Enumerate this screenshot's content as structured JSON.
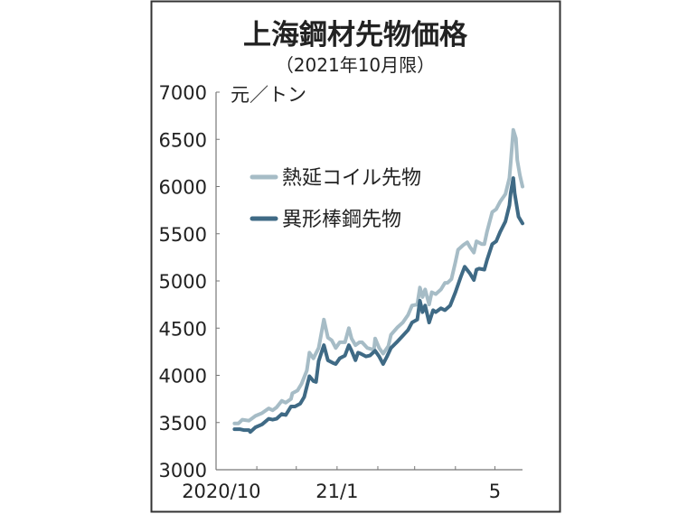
{
  "chart_data": {
    "type": "line",
    "title": "上海鋼材先物価格",
    "subtitle": "（2021年10月限）",
    "ylabel": "元／トン",
    "xlabel": "",
    "ylim": [
      3000,
      7000
    ],
    "yticks": [
      3000,
      3500,
      4000,
      4500,
      5000,
      5500,
      6000,
      6500,
      7000
    ],
    "xlim": [
      "2020-10-01",
      "2021-05-22"
    ],
    "xtick_marks": [
      "2020-11-01",
      "2020-12-01",
      "2021-01-01",
      "2021-02-01",
      "2021-03-01",
      "2021-04-01",
      "2021-05-01"
    ],
    "xtick_labels": [
      {
        "date": "2020-10-05",
        "label": "2020/10"
      },
      {
        "date": "2021-01-01",
        "label": "21/1"
      },
      {
        "date": "2021-05-01",
        "label": "5"
      }
    ],
    "grid": false,
    "legend_placement": "upper-left",
    "series": [
      {
        "name": "熱延コイル先物",
        "color": "#a6bcc6",
        "points": [
          [
            "2020-10-15",
            3490
          ],
          [
            "2020-10-18",
            3490
          ],
          [
            "2020-10-21",
            3530
          ],
          [
            "2020-10-26",
            3520
          ],
          [
            "2020-10-31",
            3570
          ],
          [
            "2020-11-05",
            3600
          ],
          [
            "2020-11-10",
            3650
          ],
          [
            "2020-11-13",
            3630
          ],
          [
            "2020-11-16",
            3660
          ],
          [
            "2020-11-20",
            3730
          ],
          [
            "2020-11-23",
            3710
          ],
          [
            "2020-11-27",
            3750
          ],
          [
            "2020-11-28",
            3810
          ],
          [
            "2020-12-02",
            3840
          ],
          [
            "2020-12-05",
            3910
          ],
          [
            "2020-12-09",
            4050
          ],
          [
            "2020-12-11",
            4240
          ],
          [
            "2020-12-14",
            4180
          ],
          [
            "2020-12-18",
            4290
          ],
          [
            "2020-12-22",
            4590
          ],
          [
            "2020-12-25",
            4400
          ],
          [
            "2020-12-28",
            4370
          ],
          [
            "2020-12-31",
            4290
          ],
          [
            "2021-01-03",
            4350
          ],
          [
            "2021-01-07",
            4350
          ],
          [
            "2021-01-10",
            4500
          ],
          [
            "2021-01-12",
            4390
          ],
          [
            "2021-01-15",
            4320
          ],
          [
            "2021-01-18",
            4350
          ],
          [
            "2021-01-20",
            4350
          ],
          [
            "2021-01-24",
            4290
          ],
          [
            "2021-01-29",
            4270
          ],
          [
            "2021-01-30",
            4390
          ],
          [
            "2021-02-02",
            4290
          ],
          [
            "2021-02-05",
            4230
          ],
          [
            "2021-02-09",
            4310
          ],
          [
            "2021-02-11",
            4430
          ],
          [
            "2021-02-16",
            4510
          ],
          [
            "2021-02-20",
            4560
          ],
          [
            "2021-02-24",
            4640
          ],
          [
            "2021-02-27",
            4740
          ],
          [
            "2021-03-03",
            4750
          ],
          [
            "2021-03-05",
            4930
          ],
          [
            "2021-03-07",
            4830
          ],
          [
            "2021-03-09",
            4910
          ],
          [
            "2021-03-12",
            4750
          ],
          [
            "2021-03-14",
            4880
          ],
          [
            "2021-03-17",
            4860
          ],
          [
            "2021-03-21",
            4910
          ],
          [
            "2021-03-24",
            4980
          ],
          [
            "2021-03-26",
            4980
          ],
          [
            "2021-03-29",
            5020
          ],
          [
            "2021-04-01",
            5200
          ],
          [
            "2021-04-03",
            5330
          ],
          [
            "2021-04-07",
            5380
          ],
          [
            "2021-04-10",
            5410
          ],
          [
            "2021-04-12",
            5360
          ],
          [
            "2021-04-15",
            5300
          ],
          [
            "2021-04-17",
            5420
          ],
          [
            "2021-04-21",
            5390
          ],
          [
            "2021-04-23",
            5390
          ],
          [
            "2021-04-25",
            5520
          ],
          [
            "2021-04-29",
            5730
          ],
          [
            "2021-05-02",
            5760
          ],
          [
            "2021-05-05",
            5840
          ],
          [
            "2021-05-09",
            5920
          ],
          [
            "2021-05-12",
            6090
          ],
          [
            "2021-05-13",
            6250
          ],
          [
            "2021-05-15",
            6600
          ],
          [
            "2021-05-17",
            6510
          ],
          [
            "2021-05-18",
            6280
          ],
          [
            "2021-05-20",
            6120
          ],
          [
            "2021-05-22",
            6000
          ]
        ]
      },
      {
        "name": "異形棒鋼先物",
        "color": "#3f6a85",
        "points": [
          [
            "2020-10-15",
            3430
          ],
          [
            "2020-10-19",
            3430
          ],
          [
            "2020-10-22",
            3420
          ],
          [
            "2020-10-26",
            3420
          ],
          [
            "2020-10-27",
            3400
          ],
          [
            "2020-10-31",
            3450
          ],
          [
            "2020-11-05",
            3480
          ],
          [
            "2020-11-10",
            3540
          ],
          [
            "2020-11-13",
            3530
          ],
          [
            "2020-11-16",
            3540
          ],
          [
            "2020-11-20",
            3590
          ],
          [
            "2020-11-23",
            3580
          ],
          [
            "2020-11-27",
            3670
          ],
          [
            "2020-11-30",
            3670
          ],
          [
            "2020-12-04",
            3700
          ],
          [
            "2020-12-07",
            3770
          ],
          [
            "2020-12-11",
            3990
          ],
          [
            "2020-12-14",
            3940
          ],
          [
            "2020-12-16",
            3930
          ],
          [
            "2020-12-18",
            4150
          ],
          [
            "2020-12-22",
            4320
          ],
          [
            "2020-12-25",
            4160
          ],
          [
            "2020-12-29",
            4130
          ],
          [
            "2020-12-31",
            4120
          ],
          [
            "2021-01-03",
            4180
          ],
          [
            "2021-01-07",
            4210
          ],
          [
            "2021-01-10",
            4320
          ],
          [
            "2021-01-12",
            4260
          ],
          [
            "2021-01-15",
            4160
          ],
          [
            "2021-01-17",
            4240
          ],
          [
            "2021-01-19",
            4230
          ],
          [
            "2021-01-23",
            4200
          ],
          [
            "2021-01-26",
            4210
          ],
          [
            "2021-01-30",
            4260
          ],
          [
            "2021-02-02",
            4200
          ],
          [
            "2021-02-05",
            4120
          ],
          [
            "2021-02-08",
            4200
          ],
          [
            "2021-02-11",
            4290
          ],
          [
            "2021-02-16",
            4360
          ],
          [
            "2021-02-20",
            4420
          ],
          [
            "2021-02-24",
            4480
          ],
          [
            "2021-02-27",
            4560
          ],
          [
            "2021-03-03",
            4590
          ],
          [
            "2021-03-05",
            4790
          ],
          [
            "2021-03-07",
            4670
          ],
          [
            "2021-03-09",
            4740
          ],
          [
            "2021-03-12",
            4560
          ],
          [
            "2021-03-15",
            4690
          ],
          [
            "2021-03-17",
            4670
          ],
          [
            "2021-03-21",
            4710
          ],
          [
            "2021-03-24",
            4690
          ],
          [
            "2021-03-28",
            4740
          ],
          [
            "2021-04-01",
            4880
          ],
          [
            "2021-04-05",
            5040
          ],
          [
            "2021-04-08",
            5150
          ],
          [
            "2021-04-12",
            5080
          ],
          [
            "2021-04-15",
            5010
          ],
          [
            "2021-04-17",
            5120
          ],
          [
            "2021-04-19",
            5130
          ],
          [
            "2021-04-23",
            5120
          ],
          [
            "2021-04-25",
            5220
          ],
          [
            "2021-04-29",
            5390
          ],
          [
            "2021-05-02",
            5420
          ],
          [
            "2021-05-05",
            5520
          ],
          [
            "2021-05-09",
            5630
          ],
          [
            "2021-05-12",
            5800
          ],
          [
            "2021-05-13",
            5930
          ],
          [
            "2021-05-15",
            6090
          ],
          [
            "2021-05-16",
            5930
          ],
          [
            "2021-05-18",
            5760
          ],
          [
            "2021-05-19",
            5680
          ],
          [
            "2021-05-22",
            5610
          ]
        ]
      }
    ]
  }
}
